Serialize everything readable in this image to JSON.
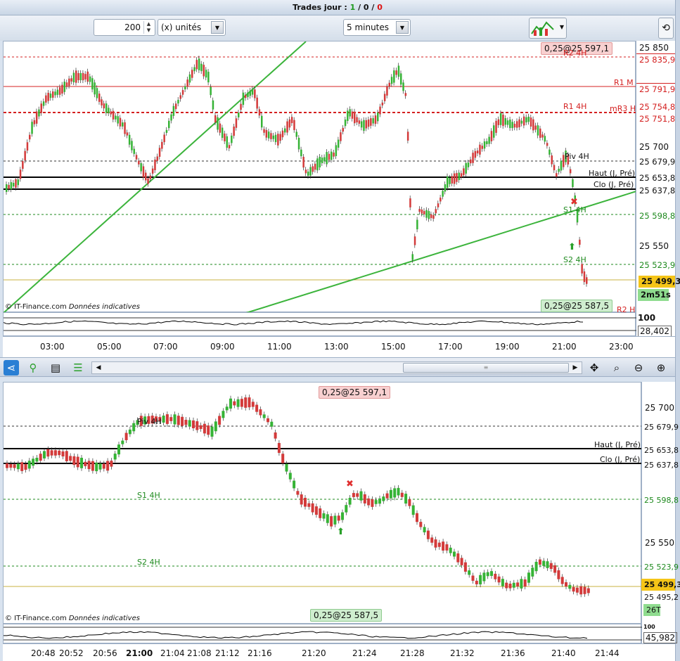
{
  "title": {
    "prefix": "Trades jour : ",
    "a": "1",
    "sep1": " / ",
    "b": "0",
    "sep2": " / ",
    "c": "0"
  },
  "toolbar": {
    "quantity": "200",
    "unit": "(x) unités",
    "timeframe": "5 minutes"
  },
  "top_chart": {
    "order_top": "0,25@25 597,1",
    "order_bottom": "0,25@25 587,5",
    "copyright": "© IT-Finance.com",
    "disclaimer": "Données indicatives",
    "axis_ticks": [
      "25 850",
      "25 700",
      "25 550"
    ],
    "price_tags": [
      {
        "label": "25 835,9",
        "color": "#d42020"
      },
      {
        "label": "25 791,9",
        "color": "#d42020"
      },
      {
        "label": "25 754,8",
        "color": "#d42020"
      },
      {
        "label": "25 751,8",
        "color": "#d42020"
      },
      {
        "label": "25 679,9",
        "color": "#111111"
      },
      {
        "label": "25 653,8",
        "color": "#111111"
      },
      {
        "label": "25 637,8",
        "color": "#111111"
      },
      {
        "label": "25 598,8",
        "color": "#1e8a1e"
      },
      {
        "label": "25 523,9",
        "color": "#1e8a1e"
      }
    ],
    "level_labels": {
      "r2": "R2 4H",
      "r1m": "R1 M",
      "r1": "R1 4H",
      "mr3": "mR3 H",
      "piv": "Piv 4H",
      "haut": "Haut (J, Pré)",
      "clo": "Clo (J, Pré)",
      "s1": "S1 4H",
      "s2": "S2 4H",
      "r2h": "R2 H"
    },
    "current_price": "25 499,3",
    "countdown": "2m51s",
    "osc_top": "100",
    "osc_value": "28,402",
    "time_labels": [
      "03:00",
      "05:00",
      "07:00",
      "09:00",
      "11:00",
      "13:00",
      "15:00",
      "17:00",
      "19:00",
      "21:00",
      "23:00"
    ]
  },
  "bottom_chart": {
    "order_top": "0,25@25 597,1",
    "order_bottom": "0,25@25 587,5",
    "copyright": "© IT-Finance.com",
    "disclaimer": "Données indicatives",
    "axis_ticks": [
      "25 700",
      "25 550"
    ],
    "price_tags": [
      {
        "label": "25 679,9",
        "color": "#111111"
      },
      {
        "label": "25 653,8",
        "color": "#111111"
      },
      {
        "label": "25 637,8",
        "color": "#111111"
      },
      {
        "label": "25 598,8",
        "color": "#1e8a1e"
      },
      {
        "label": "25 523,9",
        "color": "#1e8a1e"
      }
    ],
    "level_labels": {
      "piv": "Piv 4H",
      "haut": "Haut (J, Pré)",
      "clo": "Clo (J, Pré)",
      "s1": "S1 4H",
      "s2": "S2 4H"
    },
    "current_price": "25 499,3",
    "last_price": "25 495,2",
    "tick_count": "26T",
    "osc_top": "100",
    "osc_value": "45,982",
    "time_labels": [
      "20:48",
      "20:52",
      "20:56",
      "21:00",
      "21:04",
      "21:08",
      "21:12",
      "21:16",
      "21:20",
      "21:24",
      "21:28",
      "21:32",
      "21:36",
      "21:40",
      "21:44"
    ]
  },
  "colors": {
    "up": "#35b335",
    "down": "#d33a3a",
    "support": "#1e8a1e",
    "resistance": "#d42020",
    "current": "#f5c518"
  }
}
